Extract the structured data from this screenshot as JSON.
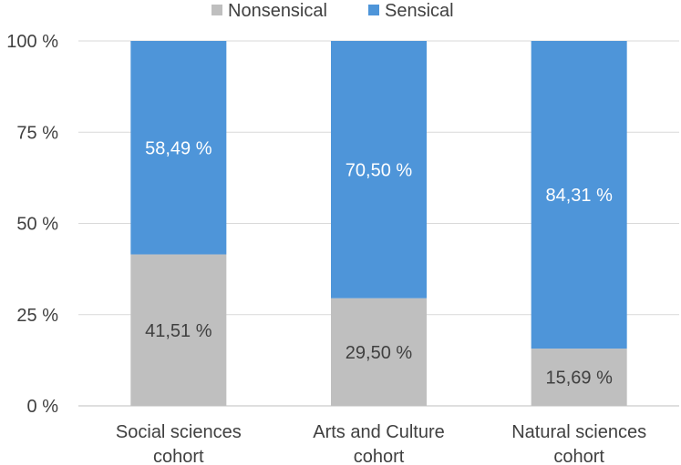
{
  "chart_data": {
    "type": "bar",
    "stacked": true,
    "percent_stacked": true,
    "categories": [
      "Social sciences cohort",
      "Arts and Culture cohort",
      "Natural sciences cohort"
    ],
    "category_label_lines": [
      [
        "Social sciences",
        "cohort"
      ],
      [
        "Arts and Culture",
        "cohort"
      ],
      [
        "Natural sciences",
        "cohort"
      ]
    ],
    "series": [
      {
        "name": "Nonsensical",
        "color": "#bfbfbf",
        "values": [
          41.51,
          29.5,
          15.69
        ],
        "labels": [
          "41,51 %",
          "29,50 %",
          "15,69 %"
        ]
      },
      {
        "name": "Sensical",
        "color": "#4e95d9",
        "values": [
          58.49,
          70.5,
          84.31
        ],
        "labels": [
          "58,49 %",
          "70,50 %",
          "84,31 %"
        ]
      }
    ],
    "ylim": [
      0,
      100
    ],
    "yticks": [
      0,
      25,
      50,
      75,
      100
    ],
    "ytick_labels": [
      "0 %",
      "25 %",
      "50 %",
      "75 %",
      "100 %"
    ],
    "grid": true,
    "legend_position": "top",
    "title": "",
    "xlabel": "",
    "ylabel": ""
  }
}
